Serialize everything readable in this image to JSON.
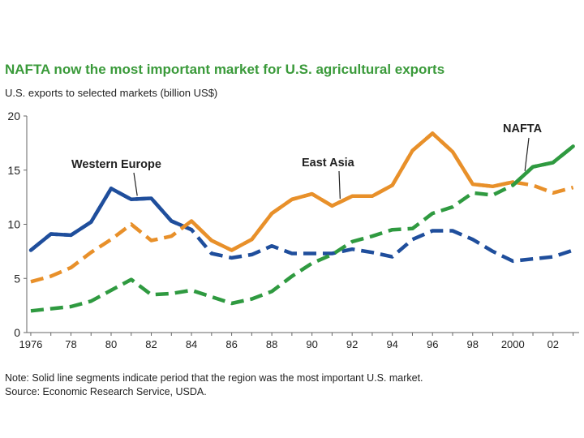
{
  "chart_data": {
    "type": "line",
    "title": "NAFTA now the most important market for U.S. agricultural exports",
    "subtitle": "U.S. exports to selected markets (billion US$)",
    "xlabel": "",
    "ylabel": "U.S. exports to selected markets (billion US$)",
    "ylim": [
      0,
      20
    ],
    "xlim": [
      1975.8,
      2003.3
    ],
    "yticks": [
      "0",
      "5",
      "10",
      "15",
      "20"
    ],
    "ytick_values": [
      0,
      5,
      10,
      15,
      20
    ],
    "xtick_values": [
      1976,
      1978,
      1980,
      1982,
      1984,
      1986,
      1988,
      1990,
      1992,
      1994,
      1996,
      1998,
      2000,
      2002
    ],
    "xtick_labels": [
      "1976",
      "78",
      "80",
      "82",
      "84",
      "86",
      "88",
      "90",
      "92",
      "94",
      "96",
      "98",
      "2000",
      "02"
    ],
    "grid": false,
    "x": [
      1976,
      1977,
      1978,
      1979,
      1980,
      1981,
      1982,
      1983,
      1984,
      1985,
      1986,
      1987,
      1988,
      1989,
      1990,
      1991,
      1992,
      1993,
      1994,
      1995,
      1996,
      1997,
      1998,
      1999,
      2000,
      2001,
      2002,
      2003
    ],
    "series": [
      {
        "name": "Western Europe",
        "label": "Western Europe",
        "color": "#1f4e9c",
        "values": [
          7.6,
          9.1,
          9.0,
          10.2,
          13.3,
          12.3,
          12.4,
          10.3,
          9.5,
          7.3,
          6.9,
          7.2,
          8.0,
          7.3,
          7.3,
          7.3,
          7.7,
          7.4,
          7.0,
          8.6,
          9.4,
          9.4,
          8.6,
          7.5,
          6.6,
          6.8,
          7.0,
          7.6
        ],
        "solid_segments": [
          [
            1976,
            1984
          ]
        ]
      },
      {
        "name": "East Asia",
        "label": "East Asia",
        "color": "#e8902a",
        "values": [
          4.7,
          5.2,
          6.0,
          7.4,
          8.6,
          10.0,
          8.5,
          8.9,
          10.3,
          8.5,
          7.6,
          8.6,
          11.0,
          12.3,
          12.8,
          11.7,
          12.6,
          12.6,
          13.6,
          16.8,
          18.4,
          16.7,
          13.7,
          13.5,
          13.9,
          13.6,
          12.9,
          13.4
        ],
        "solid_segments": [
          [
            1984,
            2000
          ]
        ]
      },
      {
        "name": "NAFTA",
        "label": "NAFTA",
        "color": "#2f9a40",
        "values": [
          2.0,
          2.2,
          2.4,
          2.9,
          3.9,
          4.9,
          3.5,
          3.6,
          3.9,
          3.3,
          2.7,
          3.1,
          3.8,
          5.2,
          6.4,
          7.2,
          8.4,
          8.9,
          9.5,
          9.6,
          11.0,
          11.6,
          12.9,
          12.7,
          13.6,
          15.3,
          15.7,
          17.2
        ],
        "solid_segments": [
          [
            2000,
            2003
          ]
        ]
      }
    ],
    "annotations": [
      {
        "text": "Western Europe",
        "points_to": "Western Europe"
      },
      {
        "text": "East Asia",
        "points_to": "East Asia"
      },
      {
        "text": "NAFTA",
        "points_to": "NAFTA"
      }
    ]
  },
  "note": "Note: Solid line segments indicate period that the region was the most important U.S. market.",
  "source": "Source: Economic Research Service, USDA."
}
